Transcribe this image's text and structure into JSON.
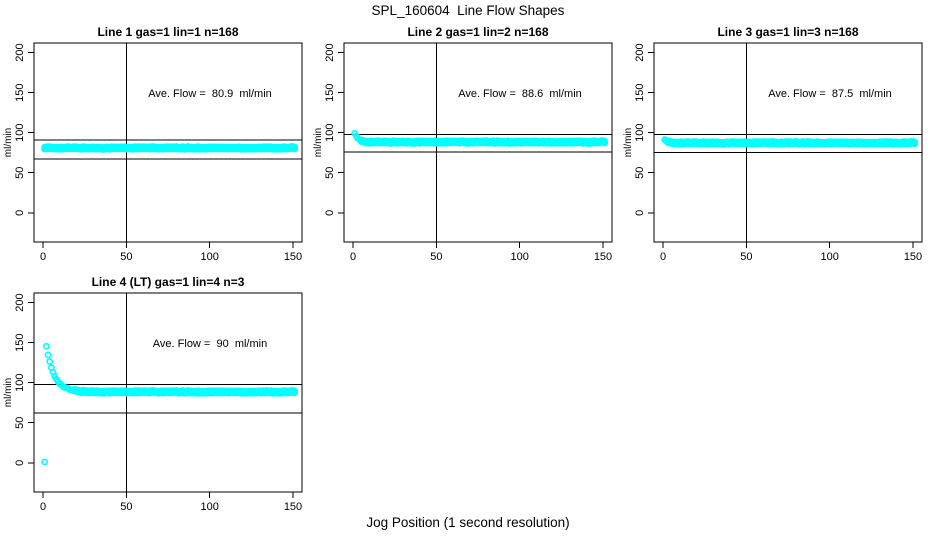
{
  "page": {
    "title": "SPL_160604  Line Flow Shapes",
    "xlabel": "Jog Position (1 second resolution)",
    "background": "#ffffff",
    "axis_color": "#000000",
    "point_color": "#00ffff"
  },
  "chart_data": [
    {
      "type": "scatter",
      "title": "Line 1 gas=1 lin=1 n=168",
      "annotation": "Ave. Flow =  80.9  ml/min",
      "ave_flow": 80.9,
      "n": 168,
      "ylabel": "ml/min",
      "x_ticks": [
        0,
        50,
        100,
        150
      ],
      "y_ticks": [
        0,
        50,
        100,
        150,
        200
      ],
      "xlim": [
        -5.4,
        155.4
      ],
      "ylim": [
        -36.5,
        212
      ],
      "grid": false,
      "legend": false,
      "vline_x": 50,
      "ref_lines": [
        91,
        67
      ],
      "point_color": "#00ffff",
      "series": {
        "outliers": [],
        "x_start": 1,
        "x_end": 151,
        "y_start": 80.9,
        "y_settle": 80.9,
        "tau": 1,
        "noise": 0.7
      }
    },
    {
      "type": "scatter",
      "title": "Line 2 gas=1 lin=2 n=168",
      "annotation": "Ave. Flow =  88.6  ml/min",
      "ave_flow": 88.6,
      "n": 168,
      "ylabel": "ml/min",
      "x_ticks": [
        0,
        50,
        100,
        150
      ],
      "y_ticks": [
        0,
        50,
        100,
        150,
        200
      ],
      "xlim": [
        -5.4,
        155.4
      ],
      "ylim": [
        -36.5,
        212
      ],
      "grid": false,
      "legend": false,
      "vline_x": 50,
      "ref_lines": [
        98,
        76
      ],
      "point_color": "#00ffff",
      "series": {
        "outliers": [],
        "x_start": 1,
        "x_end": 151,
        "y_start": 99.5,
        "y_settle": 88.3,
        "tau": 2.0,
        "noise": 0.7
      }
    },
    {
      "type": "scatter",
      "title": "Line 3 gas=1 lin=3 n=168",
      "annotation": "Ave. Flow =  87.5  ml/min",
      "ave_flow": 87.5,
      "n": 168,
      "ylabel": "ml/min",
      "x_ticks": [
        0,
        50,
        100,
        150
      ],
      "y_ticks": [
        0,
        50,
        100,
        150,
        200
      ],
      "xlim": [
        -5.4,
        155.4
      ],
      "ylim": [
        -36.5,
        212
      ],
      "grid": false,
      "legend": false,
      "vline_x": 50,
      "ref_lines": [
        98,
        75
      ],
      "point_color": "#00ffff",
      "series": {
        "outliers": [],
        "x_start": 1,
        "x_end": 151,
        "y_start": 91.5,
        "y_settle": 87.3,
        "tau": 1.4,
        "noise": 0.7
      }
    },
    {
      "type": "scatter",
      "title": "Line 4 (LT) gas=1 lin=4 n=3",
      "annotation": "Ave. Flow =  90  ml/min",
      "ave_flow": 90,
      "n": 3,
      "ylabel": "ml/min",
      "x_ticks": [
        0,
        50,
        100,
        150
      ],
      "y_ticks": [
        0,
        50,
        100,
        150,
        200
      ],
      "xlim": [
        -5.4,
        155.4
      ],
      "ylim": [
        -36.5,
        212
      ],
      "grid": false,
      "legend": false,
      "vline_x": 50,
      "ref_lines": [
        98,
        62
      ],
      "point_color": "#00ffff",
      "series": {
        "outliers": [
          [
            1,
            1
          ]
        ],
        "x_start": 2,
        "x_end": 151,
        "y_start": 145,
        "y_settle": 88.5,
        "tau": 4.8,
        "noise": 0.7
      }
    }
  ]
}
